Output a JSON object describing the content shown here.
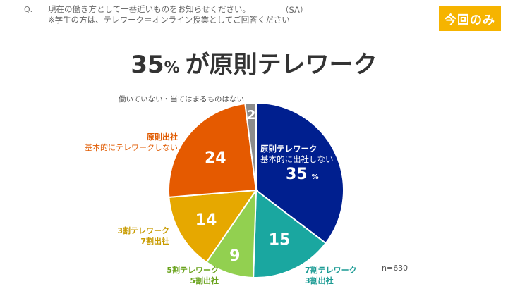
{
  "question": {
    "num": "Q.",
    "line1": "現在の働き方として一番近いものをお知らせください。",
    "sa": "（SA）",
    "line2": "※学生の方は、テレワーク＝オンライン授業としてご回答ください"
  },
  "badge": "今回のみ",
  "headline": {
    "value": "35",
    "pct": "%",
    "text": "が原則テレワーク"
  },
  "n_label": "n=630",
  "colors": {
    "full_telework": "#001f8f",
    "telework_70": "#1aa7a0",
    "telework_50": "#92d050",
    "telework_30": "#e6a800",
    "rare": "#e55a00",
    "none": "#8c8c8c",
    "badge": "#f6b400"
  },
  "chart_data": {
    "type": "pie",
    "start": "12 o'clock",
    "direction": "clockwise",
    "slices": [
      {
        "key": "full_telework",
        "value": 35,
        "label_lines": [
          "原則テレワーク",
          "基本的に出社しない"
        ],
        "value_label": "35",
        "value_unit": "%"
      },
      {
        "key": "telework_70",
        "value": 15,
        "label_lines": [
          "7割テレワーク",
          "3割出社"
        ],
        "value_label": "15"
      },
      {
        "key": "telework_50",
        "value": 9,
        "label_lines": [
          "5割テレワーク",
          "5割出社"
        ],
        "value_label": "9"
      },
      {
        "key": "telework_30",
        "value": 14,
        "label_lines": [
          "3割テレワーク",
          "7割出社"
        ],
        "value_label": "14"
      },
      {
        "key": "rare",
        "value": 24,
        "label_lines": [
          "原則出社",
          "基本的にテレワークしない"
        ],
        "value_label": "24"
      },
      {
        "key": "none",
        "value": 2,
        "label_lines": [
          "働いていない・当てはまるものはない"
        ],
        "value_label": "2"
      }
    ]
  }
}
